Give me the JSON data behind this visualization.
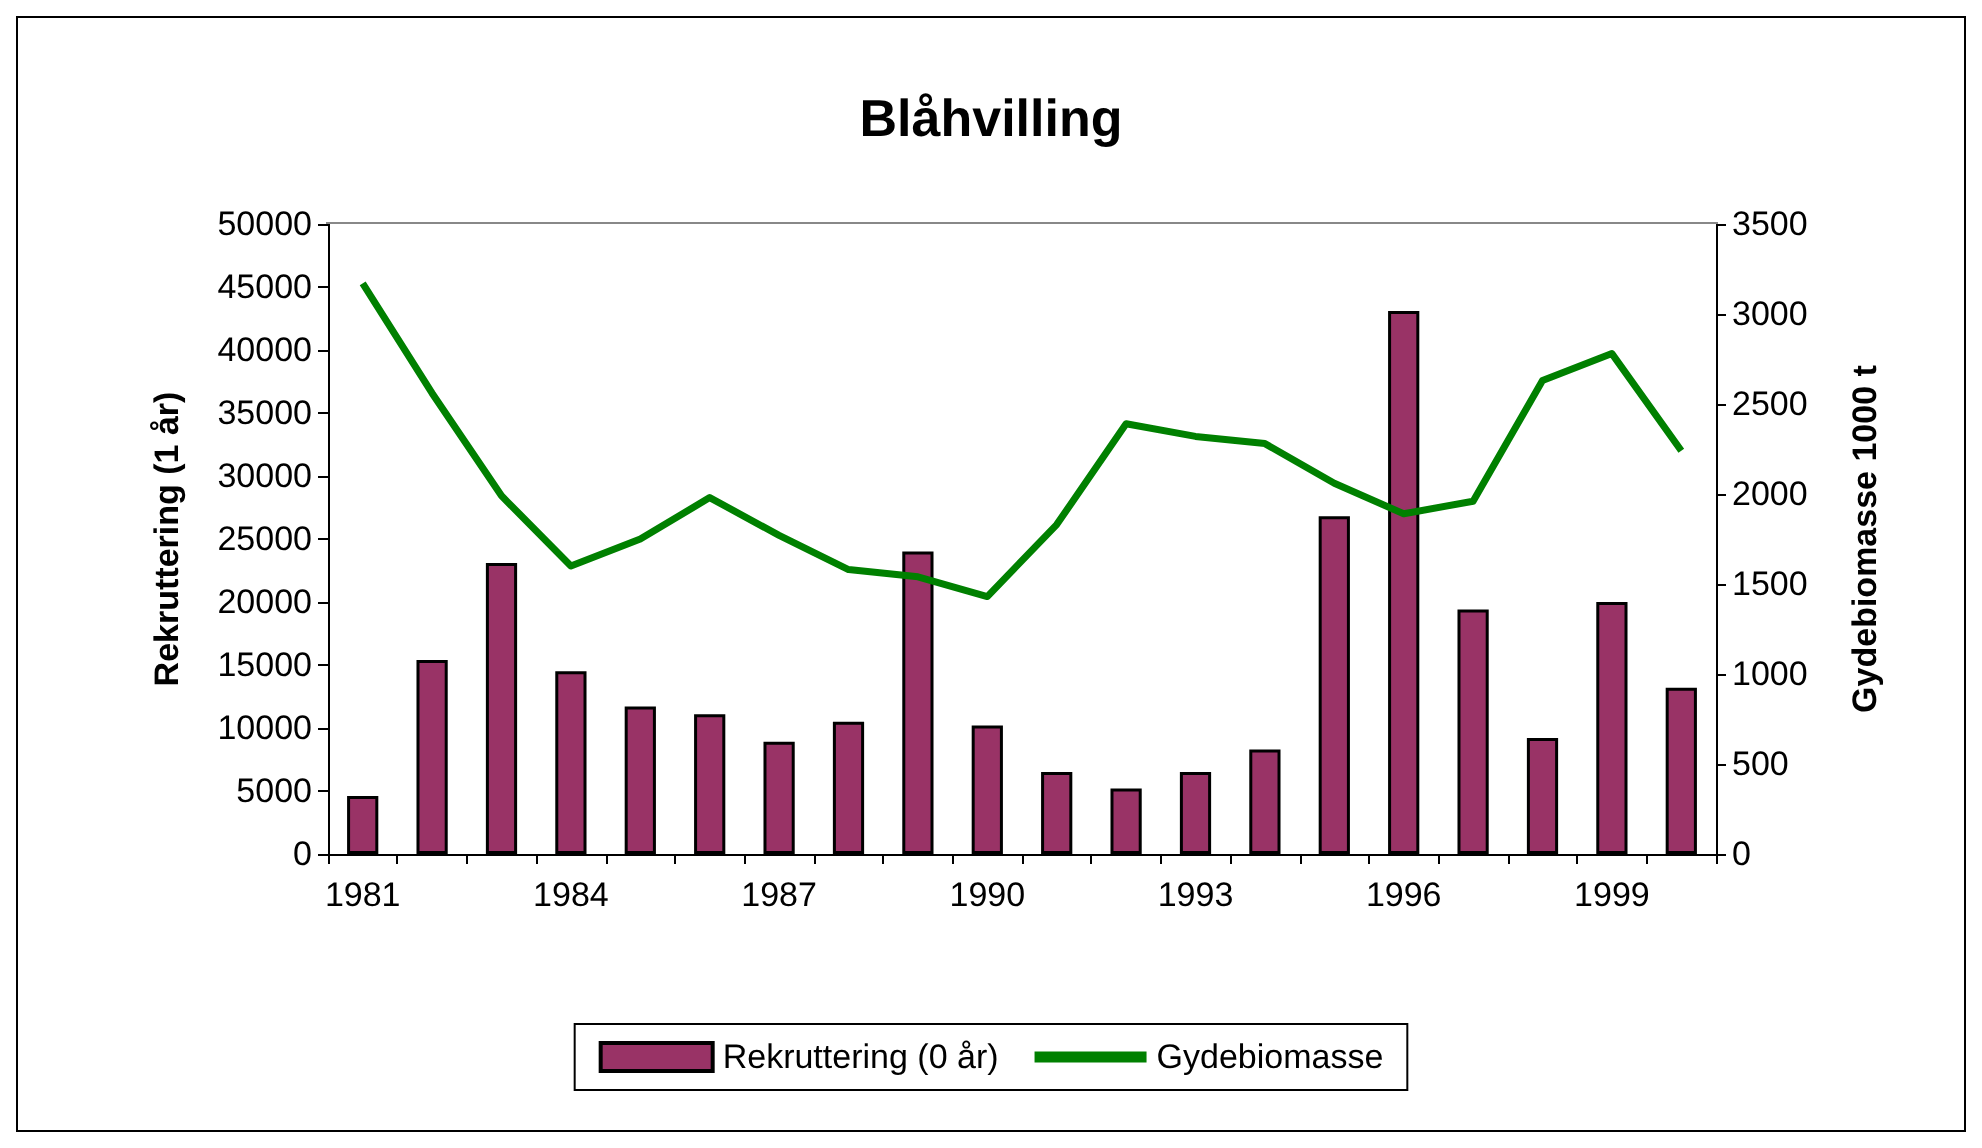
{
  "chart_data": {
    "type": "bar",
    "title": "Blåhvilling",
    "ylabel": "Rekruttering (1 år)",
    "y2label": "Gydebiomasse 1000 t",
    "categories": [
      "1981",
      null,
      null,
      "1984",
      null,
      null,
      "1987",
      null,
      null,
      "1990",
      null,
      null,
      "1993",
      null,
      null,
      "1996",
      null,
      null,
      "1999",
      null
    ],
    "series": [
      {
        "name": "Rekruttering (0 år)",
        "color": "#993366",
        "values": [
          4600,
          15400,
          23100,
          14500,
          11700,
          11100,
          8900,
          10500,
          24000,
          10200,
          6500,
          5200,
          6500,
          8300,
          26800,
          43100,
          19400,
          9200,
          20000,
          13200
        ]
      },
      {
        "name": "Gydebiomasse",
        "type": "line",
        "axis": "y2",
        "color": "#008000",
        "marker": "none",
        "values": [
          3170,
          2560,
          1990,
          1600,
          1750,
          1980,
          1770,
          1580,
          1540,
          1430,
          1830,
          2390,
          2320,
          2280,
          2060,
          1890,
          1960,
          2630,
          2780,
          2240
        ]
      }
    ],
    "ylim": [
      0,
      50000
    ],
    "yticks": [
      0,
      5000,
      10000,
      15000,
      20000,
      25000,
      30000,
      35000,
      40000,
      45000,
      50000
    ],
    "y2lim": [
      0,
      3500
    ],
    "y2ticks": [
      0,
      500,
      1000,
      1500,
      2000,
      2500,
      3000,
      3500
    ],
    "legend": "bottom",
    "grid": false
  }
}
